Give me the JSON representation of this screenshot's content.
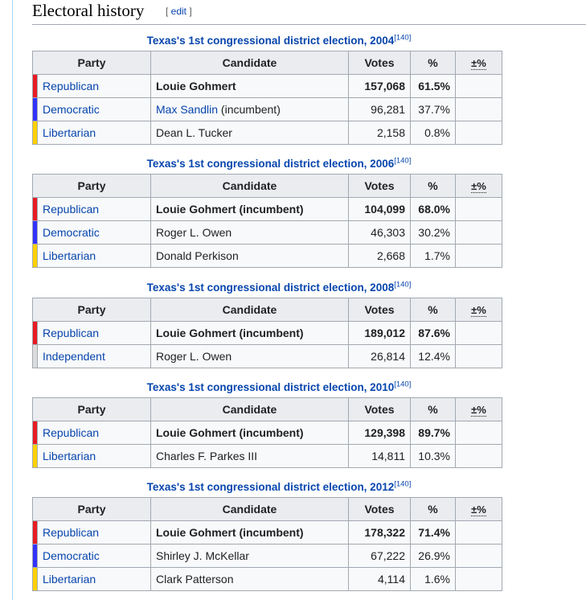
{
  "section": {
    "title": "Electoral history",
    "edit_open": "[ ",
    "edit_label": "edit",
    "edit_close": " ]"
  },
  "headers": {
    "party": "Party",
    "candidate": "Candidate",
    "votes": "Votes",
    "pct": "%",
    "change": "±%"
  },
  "colors": {
    "Republican": "#e81b23",
    "Democratic": "#3333ff",
    "Libertarian": "#fed105",
    "Independent": "#dcdcdc"
  },
  "elections": [
    {
      "caption": "Texas's 1st congressional district election, 2004",
      "ref": "[140]",
      "rows": [
        {
          "party": "Republican",
          "candidate": "Louie Gohmert",
          "candidate_link": "",
          "candidate_suffix": "",
          "votes": "157,068",
          "pct": "61.5%",
          "winner": true
        },
        {
          "party": "Democratic",
          "candidate": "",
          "candidate_link": "Max Sandlin",
          "candidate_suffix": " (incumbent)",
          "votes": "96,281",
          "pct": "37.7%",
          "winner": false
        },
        {
          "party": "Libertarian",
          "candidate": "Dean L. Tucker",
          "candidate_link": "",
          "candidate_suffix": "",
          "votes": "2,158",
          "pct": "0.8%",
          "winner": false
        }
      ]
    },
    {
      "caption": "Texas's 1st congressional district election, 2006",
      "ref": "[140]",
      "rows": [
        {
          "party": "Republican",
          "candidate": "Louie Gohmert (incumbent)",
          "candidate_link": "",
          "candidate_suffix": "",
          "votes": "104,099",
          "pct": "68.0%",
          "winner": true
        },
        {
          "party": "Democratic",
          "candidate": "Roger L. Owen",
          "candidate_link": "",
          "candidate_suffix": "",
          "votes": "46,303",
          "pct": "30.2%",
          "winner": false
        },
        {
          "party": "Libertarian",
          "candidate": "Donald Perkison",
          "candidate_link": "",
          "candidate_suffix": "",
          "votes": "2,668",
          "pct": "1.7%",
          "winner": false
        }
      ]
    },
    {
      "caption": "Texas's 1st congressional district election, 2008",
      "ref": "[140]",
      "rows": [
        {
          "party": "Republican",
          "candidate": "Louie Gohmert (incumbent)",
          "candidate_link": "",
          "candidate_suffix": "",
          "votes": "189,012",
          "pct": "87.6%",
          "winner": true
        },
        {
          "party": "Independent",
          "candidate": "Roger L. Owen",
          "candidate_link": "",
          "candidate_suffix": "",
          "votes": "26,814",
          "pct": "12.4%",
          "winner": false
        }
      ]
    },
    {
      "caption": "Texas's 1st congressional district election, 2010",
      "ref": "[140]",
      "rows": [
        {
          "party": "Republican",
          "candidate": "Louie Gohmert (incumbent)",
          "candidate_link": "",
          "candidate_suffix": "",
          "votes": "129,398",
          "pct": "89.7%",
          "winner": true
        },
        {
          "party": "Libertarian",
          "candidate": "Charles F. Parkes III",
          "candidate_link": "",
          "candidate_suffix": "",
          "votes": "14,811",
          "pct": "10.3%",
          "winner": false
        }
      ]
    },
    {
      "caption": "Texas's 1st congressional district election, 2012",
      "ref": "[140]",
      "rows": [
        {
          "party": "Republican",
          "candidate": "Louie Gohmert (incumbent)",
          "candidate_link": "",
          "candidate_suffix": "",
          "votes": "178,322",
          "pct": "71.4%",
          "winner": true
        },
        {
          "party": "Democratic",
          "candidate": "Shirley J. McKellar",
          "candidate_link": "",
          "candidate_suffix": "",
          "votes": "67,222",
          "pct": "26.9%",
          "winner": false
        },
        {
          "party": "Libertarian",
          "candidate": "Clark Patterson",
          "candidate_link": "",
          "candidate_suffix": "",
          "votes": "4,114",
          "pct": "1.6%",
          "winner": false
        }
      ]
    }
  ]
}
